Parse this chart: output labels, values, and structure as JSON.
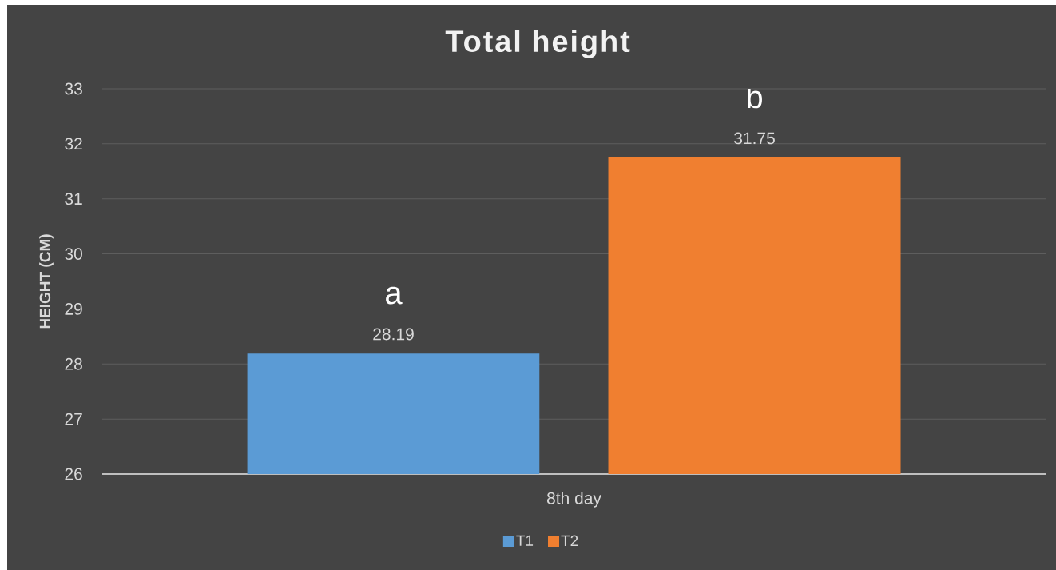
{
  "chart_data": {
    "type": "bar",
    "title": "Total height",
    "ylabel": "HEIGHT (CM)",
    "categories": [
      "8th day"
    ],
    "series": [
      {
        "name": "T1",
        "color": "#5b9bd5",
        "values": [
          28.19
        ]
      },
      {
        "name": "T2",
        "color": "#f07f30",
        "values": [
          31.75
        ]
      }
    ],
    "ylim": [
      26,
      33
    ],
    "yticks": [
      26,
      27,
      28,
      29,
      30,
      31,
      32,
      33
    ],
    "grid": "y",
    "legend": "bottom",
    "data_labels": true,
    "annotations": [
      "a",
      "b"
    ]
  }
}
